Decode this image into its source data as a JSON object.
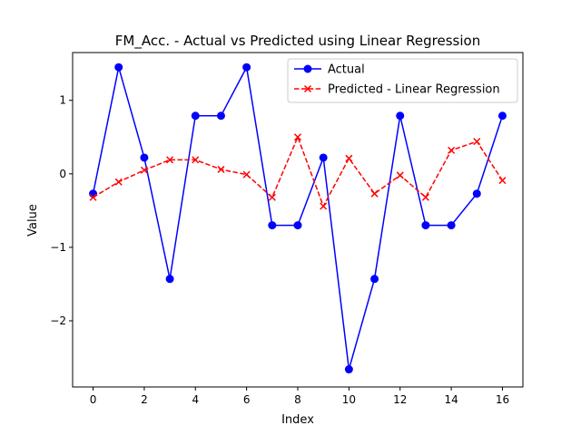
{
  "chart_data": {
    "type": "line",
    "title": "FM_Acc. - Actual vs Predicted using Linear Regression",
    "xlabel": "Index",
    "ylabel": "Value",
    "xlim": [
      -0.8,
      16.8
    ],
    "ylim": [
      -2.9,
      1.65
    ],
    "x_ticks": [
      0,
      2,
      4,
      6,
      8,
      10,
      12,
      14,
      16
    ],
    "y_ticks": [
      -2,
      -1,
      0,
      1
    ],
    "y_tick_labels": [
      "−2",
      "−1",
      "0",
      "1"
    ],
    "grid": false,
    "legend_position": "top-right",
    "x": [
      0,
      1,
      2,
      3,
      4,
      5,
      6,
      7,
      8,
      9,
      10,
      11,
      12,
      13,
      14,
      15,
      16
    ],
    "series": [
      {
        "name": "Actual",
        "color": "#0000ff",
        "line_style": "solid",
        "marker": "circle",
        "values": [
          -0.27,
          1.45,
          0.22,
          -1.43,
          0.79,
          0.79,
          1.45,
          -0.7,
          -0.7,
          0.22,
          -2.66,
          -1.43,
          0.79,
          -0.7,
          -0.7,
          -0.27,
          0.79
        ]
      },
      {
        "name": "Predicted - Linear Regression",
        "color": "#ff0000",
        "line_style": "dashed",
        "marker": "x",
        "values": [
          -0.32,
          -0.11,
          0.05,
          0.19,
          0.19,
          0.06,
          -0.01,
          -0.32,
          0.5,
          -0.44,
          0.21,
          -0.27,
          -0.02,
          -0.32,
          0.32,
          0.44,
          -0.09
        ]
      }
    ]
  }
}
